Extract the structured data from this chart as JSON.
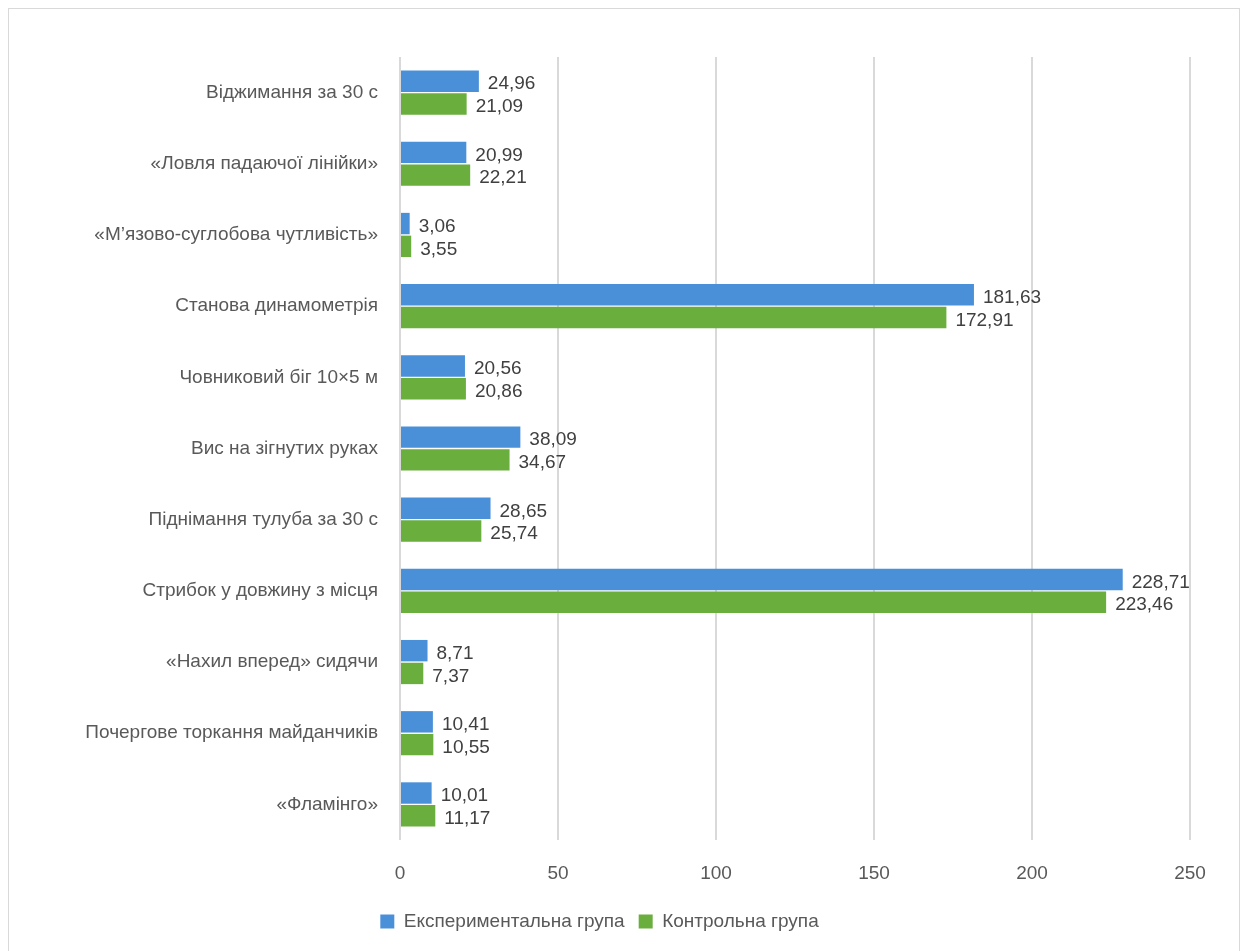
{
  "chart_data": {
    "type": "bar",
    "orientation": "horizontal",
    "categories": [
      "Віджимання за 30 с",
      "«Ловля падаючої лінійки»",
      "«М’язово-суглобова чутливість»",
      "Станова динамометрія",
      "Човниковий біг 10×5 м",
      "Вис на зігнутих руках",
      "Піднімання тулуба за 30 с",
      "Стрибок у довжину з місця",
      "«Нахил вперед» сидячи",
      "Почергове торкання майданчиків",
      "«Фламінго»"
    ],
    "series": [
      {
        "name": "Експериментальна група",
        "color": "#4a90d9",
        "values": [
          24.96,
          20.99,
          3.06,
          181.63,
          20.56,
          38.09,
          28.65,
          228.71,
          8.71,
          10.41,
          10.01
        ],
        "value_labels": [
          "24,96",
          "20,99",
          "3,06",
          "181,63",
          "20,56",
          "38,09",
          "28,65",
          "228,71",
          "8,71",
          "10,41",
          "10,01"
        ]
      },
      {
        "name": "Контрольна група",
        "color": "#6aae3e",
        "values": [
          21.09,
          22.21,
          3.55,
          172.91,
          20.86,
          34.67,
          25.74,
          223.46,
          7.37,
          10.55,
          11.17
        ],
        "value_labels": [
          "21,09",
          "22,21",
          "3,55",
          "172,91",
          "20,86",
          "34,67",
          "25,74",
          "223,46",
          "7,37",
          "10,55",
          "11,17"
        ]
      }
    ],
    "xlim": [
      0,
      250
    ],
    "xticks": [
      0,
      50,
      100,
      150,
      200,
      250
    ],
    "grid": "x",
    "legend": "bottom"
  }
}
